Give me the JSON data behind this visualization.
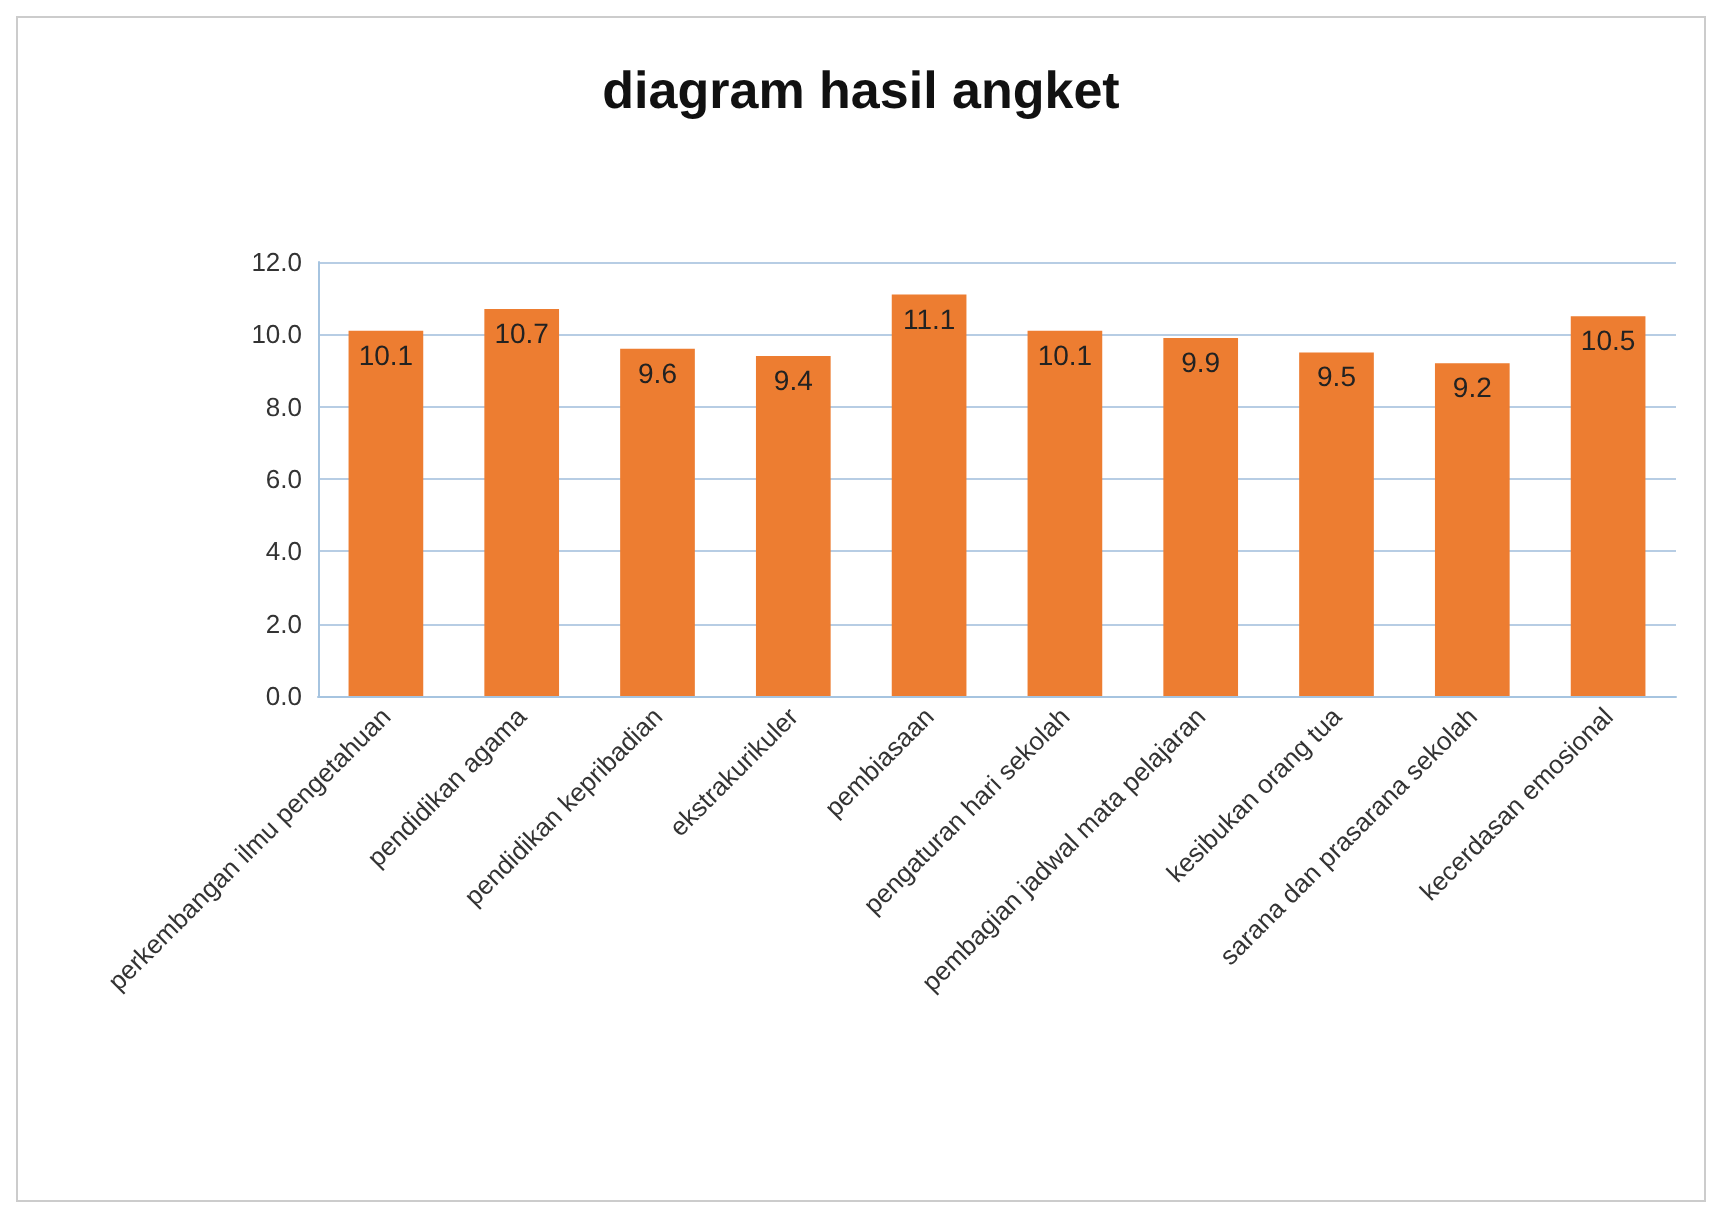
{
  "chart_data": {
    "type": "bar",
    "title": "diagram hasil angket",
    "categories": [
      "perkembangan ilmu pengetahuan",
      "pendidikan agama",
      "pendidikan kepribadian",
      "ekstrakurikuler",
      "pembiasaan",
      "pengaturan hari sekolah",
      "pembagian jadwal mata pelajaran",
      "kesibukan orang tua",
      "sarana dan prasarana sekolah",
      "kecerdasan emosional"
    ],
    "values": [
      10.1,
      10.7,
      9.6,
      9.4,
      11.1,
      10.1,
      9.9,
      9.5,
      9.2,
      10.5
    ],
    "color": "#ed7d31",
    "ylim": [
      0,
      12
    ],
    "yticks": [
      {
        "value": 0,
        "label": "0.0"
      },
      {
        "value": 2,
        "label": "2.0"
      },
      {
        "value": 4,
        "label": "4.0"
      },
      {
        "value": 6,
        "label": "6.0"
      },
      {
        "value": 8,
        "label": "8.0"
      },
      {
        "value": 10,
        "label": "10.0"
      },
      {
        "value": 12,
        "label": "12.0"
      }
    ],
    "grid": "y",
    "data_labels": true
  }
}
